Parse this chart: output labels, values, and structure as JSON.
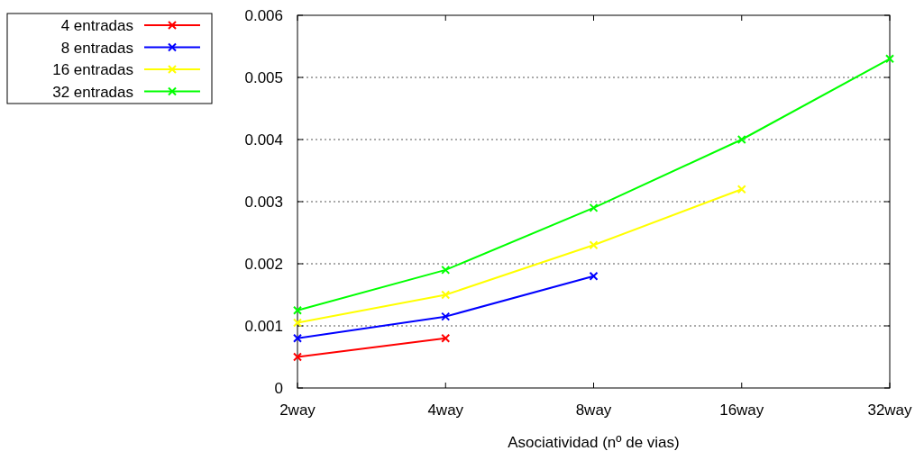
{
  "chart_data": {
    "type": "line",
    "xlabel": "Asociatividad (nº de vias)",
    "categories": [
      "2way",
      "4way",
      "8way",
      "16way",
      "32way"
    ],
    "series": [
      {
        "name": "4 entradas",
        "color": "#ff0000",
        "values": [
          0.0005,
          0.0008,
          null,
          null,
          null
        ]
      },
      {
        "name": "8 entradas",
        "color": "#0000ff",
        "values": [
          0.0008,
          0.00115,
          0.0018,
          null,
          null
        ]
      },
      {
        "name": "16 entradas",
        "color": "#ffff00",
        "values": [
          0.00105,
          0.0015,
          0.0023,
          0.0032,
          null
        ]
      },
      {
        "name": "32 entradas",
        "color": "#00ff00",
        "values": [
          0.00125,
          0.0019,
          0.0029,
          0.004,
          0.0053
        ]
      }
    ],
    "ylim": [
      0,
      0.006
    ],
    "yticks": [
      0,
      0.001,
      0.002,
      0.003,
      0.004,
      0.005,
      0.006
    ],
    "grid": "y",
    "legend": "top left",
    "marker": "cross",
    "line_style": "solid"
  }
}
